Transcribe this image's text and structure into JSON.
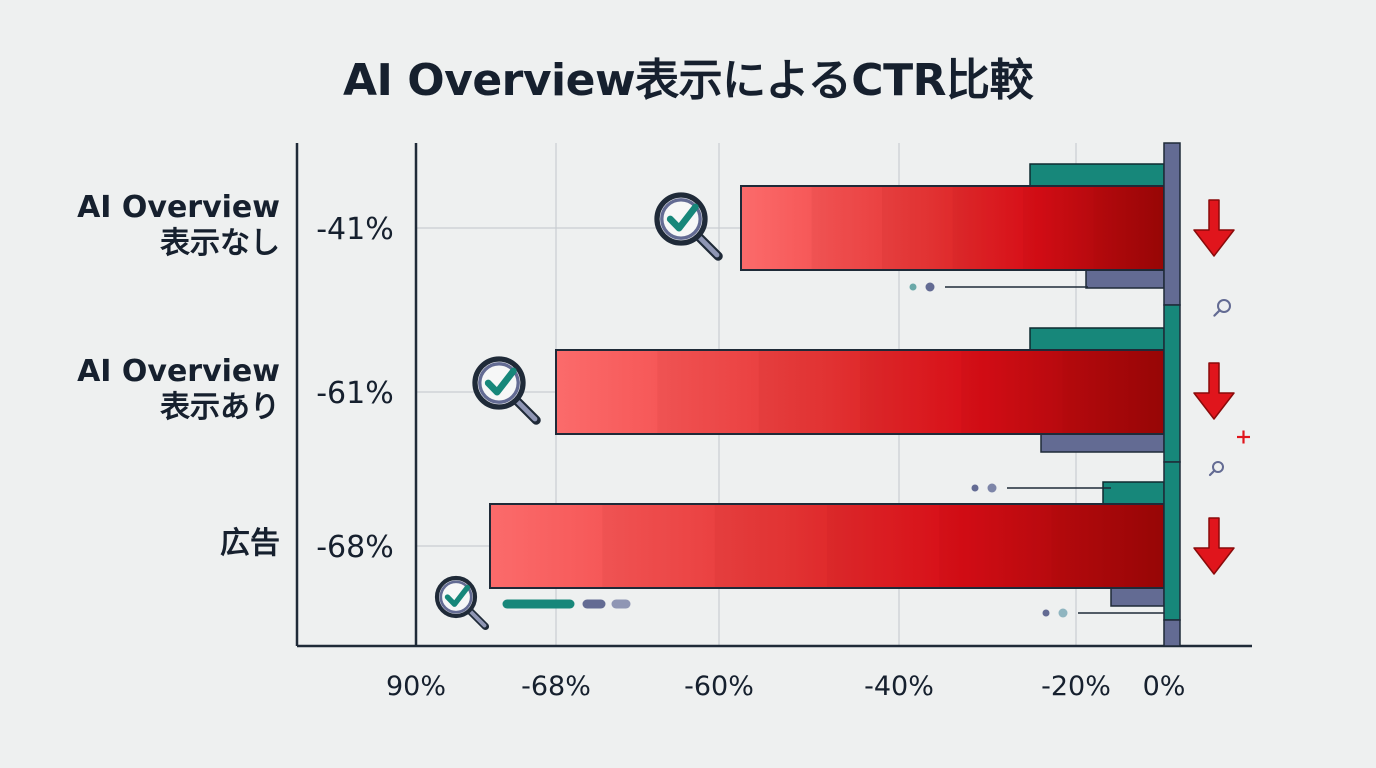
{
  "title": "AI Overview表示によるCTR比較",
  "chart_data": {
    "type": "bar",
    "orientation": "horizontal",
    "categories": [
      "AI Overview\n表示なし",
      "AI Overview\n表示あり",
      "広告"
    ],
    "values": [
      -41,
      -61,
      -68
    ],
    "data_labels": [
      "-41%",
      "-61%",
      "-68%"
    ],
    "x_tick_labels": [
      "90%",
      "-68%",
      "-60%",
      "-40%",
      "-20%",
      "0%"
    ],
    "xlim": [
      -90,
      0
    ],
    "grid": true,
    "colors": {
      "bar_light": "#fb6b6b",
      "bar_mid": "#e8101a",
      "bar_dark": "#a00808",
      "teal": "#17877a",
      "slate": "#636b93",
      "arrow": "#e0151c"
    }
  }
}
